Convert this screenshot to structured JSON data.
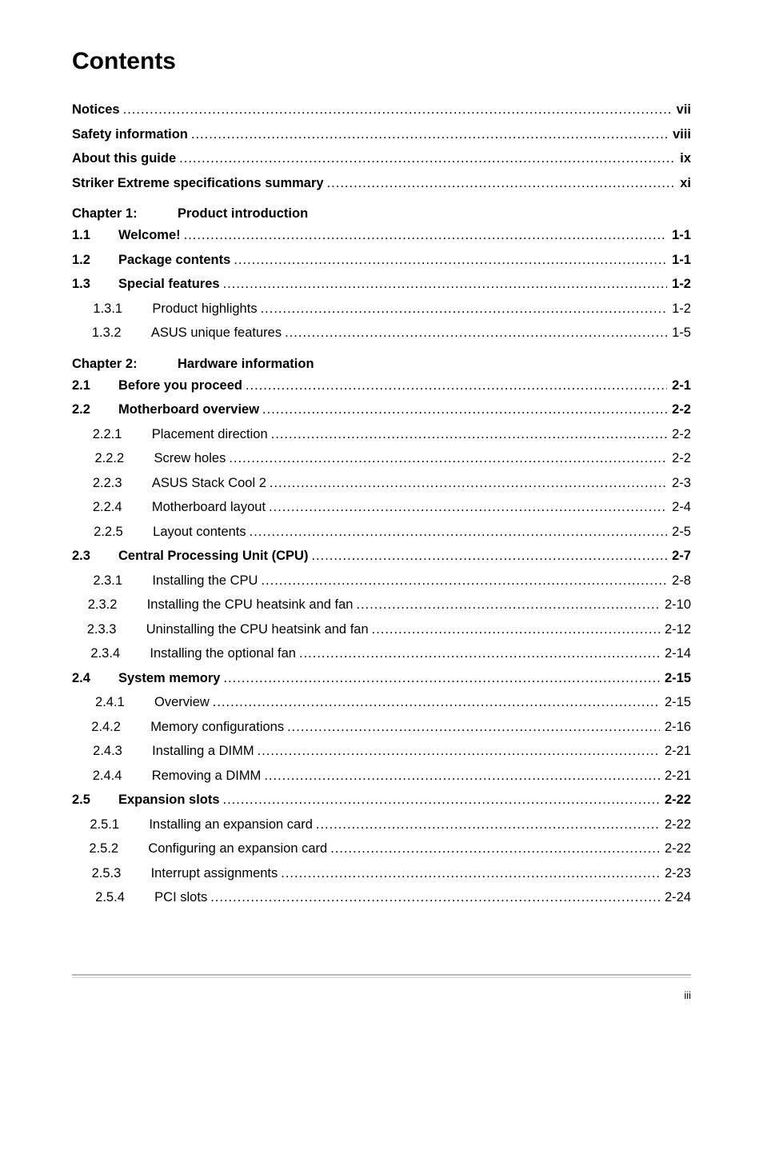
{
  "title": "Contents",
  "footer_page": "iii",
  "front_matter": [
    {
      "label": "Notices",
      "page": "vii"
    },
    {
      "label": "Safety information",
      "page": "viii"
    },
    {
      "label": "About this guide",
      "page": "ix"
    },
    {
      "label": "Striker Extreme specifications summary",
      "page": "xi"
    }
  ],
  "chapters": [
    {
      "prefix": "Chapter 1:",
      "title": "Product introduction",
      "sections": [
        {
          "num": "1.1",
          "label": "Welcome!",
          "page": "1-1",
          "bold": true,
          "subs": []
        },
        {
          "num": "1.2",
          "label": "Package contents",
          "page": "1-1",
          "bold": true,
          "subs": []
        },
        {
          "num": "1.3",
          "label": "Special features",
          "page": "1-2",
          "bold": true,
          "subs": [
            {
              "num": "1.3.1",
              "label": "Product highlights",
              "page": "1-2"
            },
            {
              "num": "1.3.2",
              "label": "ASUS unique features",
              "page": "1-5"
            }
          ]
        }
      ]
    },
    {
      "prefix": "Chapter 2:",
      "title": "Hardware information",
      "sections": [
        {
          "num": "2.1",
          "label": "Before you proceed",
          "page": "2-1",
          "bold": true,
          "subs": []
        },
        {
          "num": "2.2",
          "label": "Motherboard overview",
          "page": "2-2",
          "bold": true,
          "subs": [
            {
              "num": "2.2.1",
              "label": "Placement direction",
              "page": "2-2"
            },
            {
              "num": "2.2.2",
              "label": "Screw holes",
              "page": "2-2"
            },
            {
              "num": "2.2.3",
              "label": "ASUS Stack Cool 2",
              "page": "2-3"
            },
            {
              "num": "2.2.4",
              "label": "Motherboard layout",
              "page": "2-4"
            },
            {
              "num": "2.2.5",
              "label": "Layout contents",
              "page": "2-5"
            }
          ]
        },
        {
          "num": "2.3",
          "label": "Central Processing Unit (CPU)",
          "page": "2-7",
          "bold": true,
          "subs": [
            {
              "num": "2.3.1",
              "label": "Installing the CPU",
              "page": "2-8"
            },
            {
              "num": "2.3.2",
              "label": "Installing the CPU heatsink and fan",
              "page": "2-10"
            },
            {
              "num": "2.3.3",
              "label": "Uninstalling the CPU heatsink and fan",
              "page": "2-12"
            },
            {
              "num": "2.3.4",
              "label": "Installing the optional fan",
              "page": "2-14"
            }
          ]
        },
        {
          "num": "2.4",
          "label": "System memory",
          "page": "2-15",
          "bold": true,
          "subs": [
            {
              "num": "2.4.1",
              "label": "Overview",
              "page": "2-15"
            },
            {
              "num": "2.4.2",
              "label": "Memory configurations",
              "page": "2-16"
            },
            {
              "num": "2.4.3",
              "label": "Installing a DIMM",
              "page": "2-21"
            },
            {
              "num": "2.4.4",
              "label": "Removing a DIMM",
              "page": "2-21"
            }
          ]
        },
        {
          "num": "2.5",
          "label": "Expansion slots",
          "page": "2-22",
          "bold": true,
          "subs": [
            {
              "num": "2.5.1",
              "label": "Installing an expansion card",
              "page": "2-22"
            },
            {
              "num": "2.5.2",
              "label": "Configuring an expansion card",
              "page": "2-22"
            },
            {
              "num": "2.5.3",
              "label": "Interrupt assignments",
              "page": "2-23"
            },
            {
              "num": "2.5.4",
              "label": "PCI slots",
              "page": "2-24"
            }
          ]
        }
      ]
    }
  ]
}
